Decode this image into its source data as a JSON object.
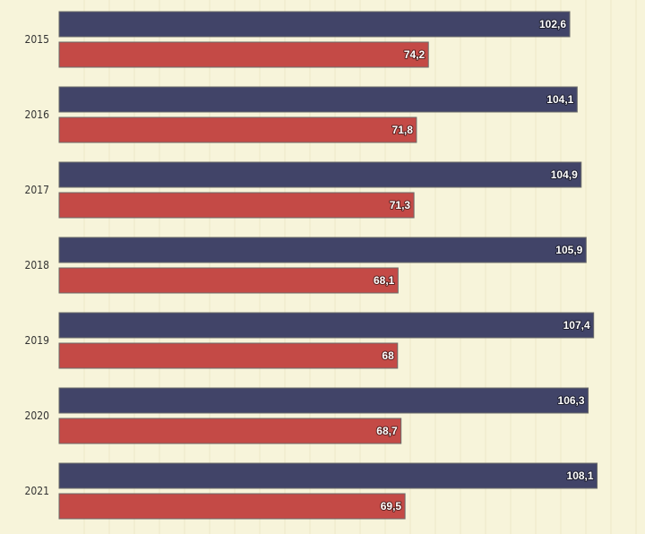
{
  "chart_data": {
    "type": "bar",
    "orientation": "horizontal",
    "categories": [
      "2015",
      "2016",
      "2017",
      "2018",
      "2019",
      "2020",
      "2021"
    ],
    "series": [
      {
        "values": [
          102.6,
          104.1,
          104.9,
          105.9,
          107.4,
          106.3,
          108.1
        ],
        "value_labels": [
          "102,6",
          "104,1",
          "104,9",
          "105,9",
          "107,4",
          "106,3",
          "108,1"
        ],
        "color": "#414468"
      },
      {
        "values": [
          74.2,
          71.8,
          71.3,
          68.1,
          68,
          68.7,
          69.5
        ],
        "value_labels": [
          "74,2",
          "71,8",
          "71,3",
          "68,1",
          "68",
          "68,7",
          "69,5"
        ],
        "color": "#c44a46"
      }
    ],
    "xlim": [
      0,
      130
    ],
    "grid": true,
    "legend": "none",
    "background": "#f7f4da"
  }
}
